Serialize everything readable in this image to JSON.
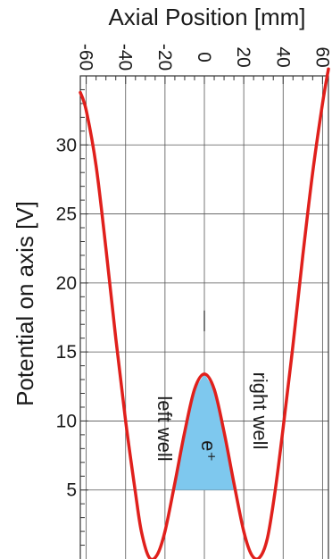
{
  "chart_data": {
    "type": "line",
    "xlabel": "Axial Position [mm]",
    "ylabel": "Potential on axis [V]",
    "x_ticks": [
      -60,
      -40,
      -20,
      0,
      20,
      40,
      60
    ],
    "y_ticks": [
      5,
      10,
      15,
      20,
      25,
      30
    ],
    "xlim": [
      -63,
      63
    ],
    "ylim": [
      0,
      35
    ],
    "grid": true,
    "orientation": "rotated: axial position runs across the top, potential increases upward",
    "series": [
      {
        "color": "#e0201c",
        "points": [
          [
            -63,
            33.8
          ],
          [
            -60,
            32.5
          ],
          [
            -55,
            28.5
          ],
          [
            -50,
            22.5
          ],
          [
            -45,
            16.0
          ],
          [
            -40,
            10.0
          ],
          [
            -35,
            4.8
          ],
          [
            -32,
            2.0
          ],
          [
            -28,
            0.1
          ],
          [
            -24,
            0.3
          ],
          [
            -20,
            2.0
          ],
          [
            -15,
            5.5
          ],
          [
            -10,
            9.2
          ],
          [
            -5,
            12.3
          ],
          [
            0,
            13.4
          ],
          [
            5,
            12.3
          ],
          [
            10,
            9.2
          ],
          [
            15,
            5.5
          ],
          [
            20,
            2.0
          ],
          [
            24,
            0.3
          ],
          [
            28,
            0.1
          ],
          [
            32,
            1.5
          ],
          [
            36,
            5.0
          ],
          [
            40,
            9.5
          ],
          [
            45,
            15.5
          ],
          [
            50,
            22.0
          ],
          [
            55,
            28.0
          ],
          [
            60,
            33.0
          ],
          [
            63,
            35.5
          ]
        ]
      }
    ],
    "fill_region": {
      "label": "e⁺",
      "y_min": 5,
      "color": "#7ec8ee"
    },
    "marker_line": {
      "x": 0,
      "y_from": 16.5,
      "y_to": 18
    },
    "annotations": [
      "left well",
      "right well"
    ]
  }
}
